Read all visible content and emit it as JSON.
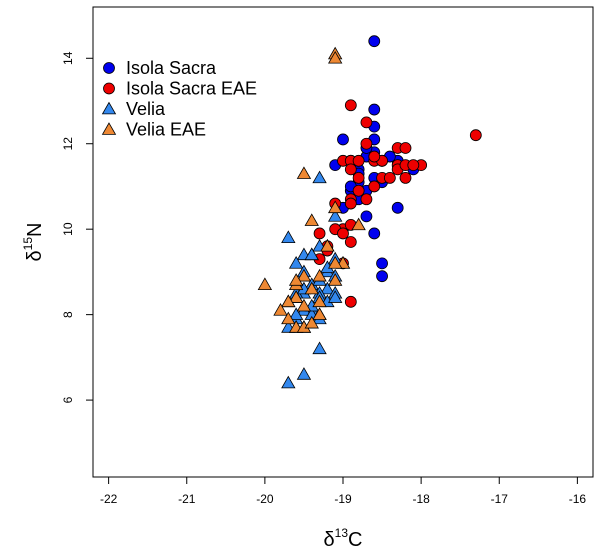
{
  "chart_data": {
    "type": "scatter",
    "xlim": [
      -22.2,
      -15.8
    ],
    "ylim": [
      4.2,
      15.2
    ],
    "x_ticks": [
      -22,
      -21,
      -20,
      -19,
      -18,
      -17,
      -16
    ],
    "x_tick_labels": [
      "-22",
      "-21",
      "-20",
      "-19",
      "-18",
      "-17",
      "-16"
    ],
    "y_ticks": [
      6,
      8,
      10,
      12,
      14
    ],
    "y_tick_labels": [
      "6",
      "8",
      "10",
      "12",
      "14"
    ],
    "xlabel": {
      "base": "δ",
      "sup": "13",
      "rest": "C"
    },
    "ylabel": {
      "base": "δ",
      "sup": "15",
      "rest": "N"
    },
    "grid": false,
    "legend_position": "top-left",
    "series": [
      {
        "name": "Isola Sacra",
        "marker": "circle",
        "color": "#0000ee",
        "points": [
          [
            -18.6,
            14.4
          ],
          [
            -18.6,
            12.8
          ],
          [
            -18.6,
            12.4
          ],
          [
            -18.6,
            12.1
          ],
          [
            -18.6,
            11.8
          ],
          [
            -18.7,
            11.7
          ],
          [
            -18.5,
            11.6
          ],
          [
            -18.8,
            11.4
          ],
          [
            -18.6,
            11.2
          ],
          [
            -18.8,
            11.1
          ],
          [
            -18.7,
            10.9
          ],
          [
            -18.8,
            10.7
          ],
          [
            -18.9,
            10.9
          ],
          [
            -19.0,
            10.5
          ],
          [
            -19.1,
            11.5
          ],
          [
            -19.0,
            12.1
          ],
          [
            -18.9,
            11.6
          ],
          [
            -18.7,
            10.3
          ],
          [
            -18.6,
            9.9
          ],
          [
            -18.5,
            9.2
          ],
          [
            -18.5,
            8.9
          ],
          [
            -18.3,
            10.5
          ],
          [
            -18.1,
            11.4
          ],
          [
            -18.3,
            11.6
          ],
          [
            -18.7,
            11.9
          ],
          [
            -18.4,
            11.7
          ],
          [
            -18.9,
            11.0
          ],
          [
            -18.8,
            11.3
          ],
          [
            -18.5,
            11.1
          ]
        ]
      },
      {
        "name": "Isola Sacra EAE",
        "marker": "circle",
        "color": "#ee0000",
        "points": [
          [
            -17.3,
            12.2
          ],
          [
            -18.9,
            12.9
          ],
          [
            -18.7,
            12.5
          ],
          [
            -18.7,
            12.0
          ],
          [
            -18.3,
            11.9
          ],
          [
            -18.2,
            11.9
          ],
          [
            -19.0,
            11.6
          ],
          [
            -18.9,
            11.6
          ],
          [
            -18.8,
            11.6
          ],
          [
            -18.6,
            11.6
          ],
          [
            -18.5,
            11.6
          ],
          [
            -18.3,
            11.5
          ],
          [
            -18.3,
            11.4
          ],
          [
            -18.2,
            11.5
          ],
          [
            -18.0,
            11.5
          ],
          [
            -18.1,
            11.5
          ],
          [
            -18.9,
            11.4
          ],
          [
            -18.8,
            11.2
          ],
          [
            -18.5,
            11.2
          ],
          [
            -18.4,
            11.2
          ],
          [
            -18.2,
            11.2
          ],
          [
            -18.6,
            11.0
          ],
          [
            -18.8,
            10.9
          ],
          [
            -18.9,
            10.7
          ],
          [
            -18.9,
            10.6
          ],
          [
            -18.7,
            10.7
          ],
          [
            -19.1,
            10.6
          ],
          [
            -19.0,
            10.0
          ],
          [
            -19.1,
            10.0
          ],
          [
            -19.0,
            9.9
          ],
          [
            -18.9,
            10.1
          ],
          [
            -19.3,
            9.9
          ],
          [
            -18.9,
            9.7
          ],
          [
            -19.2,
            9.6
          ],
          [
            -19.2,
            9.5
          ],
          [
            -19.3,
            9.3
          ],
          [
            -18.9,
            8.3
          ],
          [
            -19.0,
            9.2
          ],
          [
            -18.6,
            11.7
          ]
        ]
      },
      {
        "name": "Velia",
        "marker": "triangle",
        "color": "#3388ee",
        "points": [
          [
            -19.3,
            11.2
          ],
          [
            -19.1,
            10.3
          ],
          [
            -19.7,
            9.8
          ],
          [
            -19.2,
            9.6
          ],
          [
            -19.3,
            9.6
          ],
          [
            -19.1,
            9.3
          ],
          [
            -19.0,
            9.2
          ],
          [
            -19.4,
            9.4
          ],
          [
            -19.5,
            9.4
          ],
          [
            -19.6,
            9.2
          ],
          [
            -19.2,
            9.0
          ],
          [
            -19.1,
            8.9
          ],
          [
            -19.4,
            8.7
          ],
          [
            -19.2,
            8.6
          ],
          [
            -19.1,
            8.5
          ],
          [
            -19.3,
            8.5
          ],
          [
            -19.5,
            8.5
          ],
          [
            -19.6,
            8.5
          ],
          [
            -19.7,
            8.3
          ],
          [
            -19.3,
            8.4
          ],
          [
            -19.2,
            8.3
          ],
          [
            -19.4,
            8.1
          ],
          [
            -19.5,
            8.1
          ],
          [
            -19.4,
            8.0
          ],
          [
            -19.3,
            8.0
          ],
          [
            -19.6,
            7.9
          ],
          [
            -19.5,
            7.7
          ],
          [
            -19.6,
            7.7
          ],
          [
            -19.7,
            7.7
          ],
          [
            -19.3,
            7.2
          ],
          [
            -19.5,
            6.6
          ],
          [
            -19.7,
            6.4
          ],
          [
            -19.4,
            9.4
          ],
          [
            -19.1,
            8.4
          ],
          [
            -19.3,
            8.8
          ],
          [
            -19.5,
            9.0
          ],
          [
            -19.2,
            9.1
          ],
          [
            -19.4,
            8.2
          ],
          [
            -19.6,
            8.0
          ],
          [
            -19.3,
            7.9
          ],
          [
            -19.5,
            8.6
          ],
          [
            -19.6,
            8.4
          ]
        ]
      },
      {
        "name": "Velia EAE",
        "marker": "triangle",
        "color": "#ee8833",
        "points": [
          [
            -19.1,
            14.1
          ],
          [
            -19.1,
            14.0
          ],
          [
            -19.5,
            11.3
          ],
          [
            -19.1,
            10.5
          ],
          [
            -19.4,
            10.2
          ],
          [
            -19.2,
            9.6
          ],
          [
            -19.0,
            9.2
          ],
          [
            -19.1,
            9.2
          ],
          [
            -19.5,
            8.9
          ],
          [
            -19.3,
            8.9
          ],
          [
            -19.6,
            8.7
          ],
          [
            -19.4,
            8.6
          ],
          [
            -19.6,
            8.4
          ],
          [
            -20.0,
            8.7
          ],
          [
            -19.7,
            8.3
          ],
          [
            -19.8,
            8.1
          ],
          [
            -19.7,
            7.9
          ],
          [
            -19.6,
            7.7
          ],
          [
            -19.5,
            7.7
          ],
          [
            -19.5,
            8.2
          ],
          [
            -19.3,
            8.0
          ],
          [
            -18.8,
            10.1
          ],
          [
            -19.1,
            8.8
          ],
          [
            -19.6,
            8.8
          ],
          [
            -19.3,
            8.3
          ],
          [
            -19.4,
            7.8
          ]
        ]
      }
    ]
  }
}
